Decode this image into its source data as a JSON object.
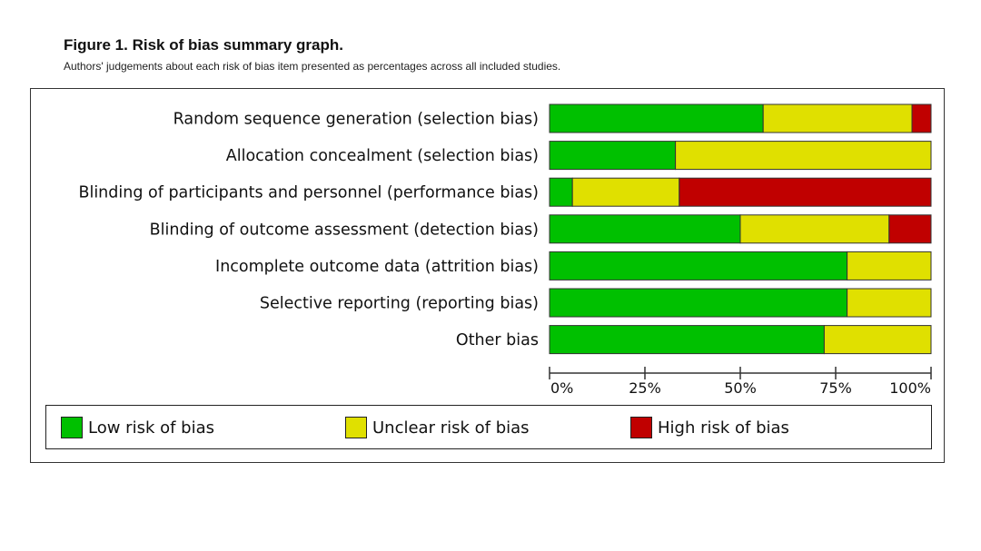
{
  "figure": {
    "title": "Figure 1. Risk of bias summary graph.",
    "subtitle": "Authors' judgements about each risk of bias item presented as percentages across all included studies."
  },
  "chart_data": {
    "type": "bar",
    "orientation": "horizontal",
    "stacked": true,
    "categories": [
      "Random sequence generation (selection bias)",
      "Allocation concealment (selection bias)",
      "Blinding of participants and personnel (performance bias)",
      "Blinding of outcome assessment (detection bias)",
      "Incomplete outcome data (attrition bias)",
      "Selective reporting (reporting bias)",
      "Other bias"
    ],
    "series": [
      {
        "name": "Low risk of bias",
        "color": "#00c000",
        "values": [
          56,
          33,
          6,
          50,
          78,
          78,
          72
        ]
      },
      {
        "name": "Unclear risk of bias",
        "color": "#e0e000",
        "values": [
          39,
          67,
          28,
          39,
          22,
          22,
          28
        ]
      },
      {
        "name": "High risk of bias",
        "color": "#c00000",
        "values": [
          5,
          0,
          66,
          11,
          0,
          0,
          0
        ]
      }
    ],
    "xlim": [
      0,
      100
    ],
    "xticks": [
      "0%",
      "25%",
      "50%",
      "75%",
      "100%"
    ],
    "legend_position": "bottom",
    "grid": false
  }
}
